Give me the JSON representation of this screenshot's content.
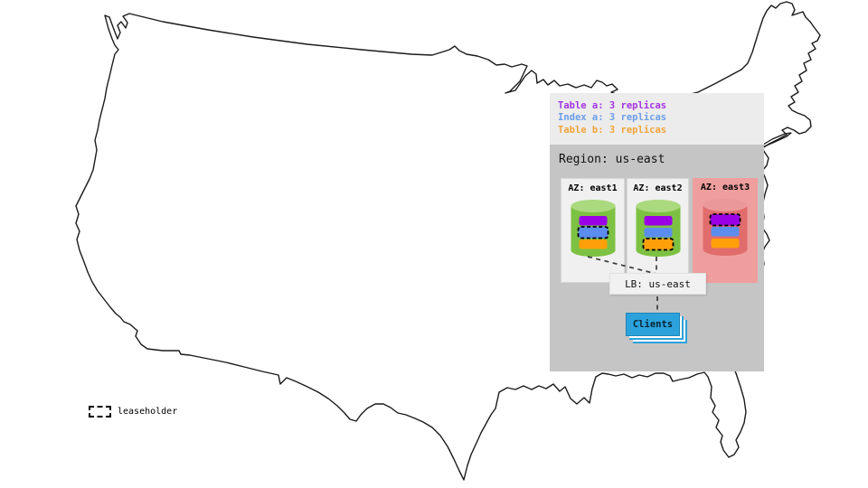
{
  "legend": {
    "items": [
      {
        "id": "table-a",
        "label": "Table a: 3 replicas",
        "color": "#a335e0"
      },
      {
        "id": "index-a",
        "label": "Index a: 3 replicas",
        "color": "#6c9eeb"
      },
      {
        "id": "table-b",
        "label": "Table b: 3 replicas",
        "color": "#f2a43a"
      }
    ]
  },
  "region": {
    "label": "Region: us-east",
    "azs": [
      {
        "label": "AZ: east1",
        "status": "up",
        "bg": "#f0f0f0",
        "cylinder": {
          "body": "#7dc142",
          "top": "#abd97e"
        },
        "replicas": [
          {
            "name": "table-a",
            "color": "#9900e6",
            "leaseholder": false
          },
          {
            "name": "index-a",
            "color": "#5b8dee",
            "leaseholder": true
          },
          {
            "name": "table-b",
            "color": "#ffa00a",
            "leaseholder": false
          }
        ]
      },
      {
        "label": "AZ: east2",
        "status": "up",
        "bg": "#f0f0f0",
        "cylinder": {
          "body": "#7dc142",
          "top": "#abd97e"
        },
        "replicas": [
          {
            "name": "table-a",
            "color": "#9900e6",
            "leaseholder": false
          },
          {
            "name": "index-a",
            "color": "#5b8dee",
            "leaseholder": false
          },
          {
            "name": "table-b",
            "color": "#ffa00a",
            "leaseholder": true
          }
        ]
      },
      {
        "label": "AZ: east3",
        "status": "down",
        "bg": "#ef9e9e",
        "cylinder": {
          "body": "#e06c6c",
          "top": "#ea9898"
        },
        "replicas": [
          {
            "name": "table-a",
            "color": "#9900e6",
            "leaseholder": true
          },
          {
            "name": "index-a",
            "color": "#5b8dee",
            "leaseholder": false
          },
          {
            "name": "table-b",
            "color": "#ffa00a",
            "leaseholder": false
          }
        ]
      }
    ],
    "lb_label": "LB: us-east",
    "clients_label": "Clients"
  },
  "map_key": {
    "leaseholder_label": "leaseholder"
  },
  "colors": {
    "legend_box_bg": "#ececec",
    "region_box_bg": "#c5c5c5",
    "clients_bg": "#2ba2dc",
    "clients_border": "#1f85b8",
    "lb_bg": "#f1f1f1",
    "map_stroke": "#1a1a1a",
    "connector": "#3c3c3c"
  }
}
